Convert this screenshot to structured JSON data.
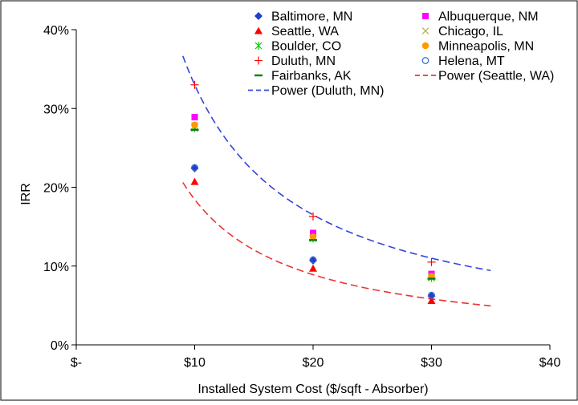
{
  "chart_data": {
    "type": "scatter",
    "title": "",
    "xlabel": "Installed System Cost ($/sqft - Absorber)",
    "ylabel": "IRR",
    "xlim": [
      0,
      40
    ],
    "ylim": [
      0,
      0.4
    ],
    "grid": false,
    "legend_position": "top-right",
    "x_ticks": [
      {
        "value": 0,
        "label": "$-"
      },
      {
        "value": 10,
        "label": "$10"
      },
      {
        "value": 20,
        "label": "$20"
      },
      {
        "value": 30,
        "label": "$30"
      },
      {
        "value": 40,
        "label": "$40"
      }
    ],
    "y_ticks": [
      {
        "value": 0,
        "label": "0%"
      },
      {
        "value": 0.1,
        "label": "10%"
      },
      {
        "value": 0.2,
        "label": "20%"
      },
      {
        "value": 0.3,
        "label": "30%"
      },
      {
        "value": 0.4,
        "label": "40%"
      }
    ],
    "series": [
      {
        "name": "Baltimore, MN",
        "marker": "diamond",
        "color": "#1f3fd0",
        "x": [
          10,
          20,
          30
        ],
        "y": [
          0.224,
          0.107,
          0.062
        ]
      },
      {
        "name": "Albuquerque, NM",
        "marker": "square",
        "color": "#ff00ff",
        "x": [
          10,
          20,
          30
        ],
        "y": [
          0.289,
          0.142,
          0.09
        ]
      },
      {
        "name": "Seattle, WA",
        "marker": "triangle",
        "color": "#ff0000",
        "x": [
          10,
          20,
          30
        ],
        "y": [
          0.207,
          0.097,
          0.056
        ]
      },
      {
        "name": "Chicago, IL",
        "marker": "x",
        "color": "#b0b040",
        "x": [
          10,
          20,
          30
        ],
        "y": [
          0.278,
          0.136,
          0.086
        ]
      },
      {
        "name": "Boulder, CO",
        "marker": "asterisk",
        "color": "#00cc00",
        "x": [
          10,
          20,
          30
        ],
        "y": [
          0.275,
          0.135,
          0.085
        ]
      },
      {
        "name": "Minneapolis, MN",
        "marker": "circle",
        "color": "#ff9900",
        "x": [
          10,
          20,
          30
        ],
        "y": [
          0.279,
          0.137,
          0.087
        ]
      },
      {
        "name": "Duluth, MN",
        "marker": "plus",
        "color": "#ff0000",
        "x": [
          10,
          20,
          30
        ],
        "y": [
          0.33,
          0.163,
          0.105
        ]
      },
      {
        "name": "Helena, MT",
        "marker": "open-circle",
        "color": "#3366cc",
        "x": [
          10,
          20,
          30
        ],
        "y": [
          0.225,
          0.108,
          0.063
        ]
      },
      {
        "name": "Fairbanks, AK",
        "marker": "dash",
        "color": "#008000",
        "x": [
          10,
          20,
          30
        ],
        "y": [
          0.273,
          0.133,
          0.084
        ]
      }
    ],
    "trendlines": [
      {
        "name": "Power (Duluth, MN)",
        "style": "dashed",
        "color": "#3344dd",
        "coef": 3.3,
        "exponent": -1.0,
        "x_range": [
          9,
          35
        ]
      },
      {
        "name": "Power (Seattle, WA)",
        "style": "dashed",
        "color": "#ee3333",
        "coef": 2.07,
        "exponent": -1.05,
        "x_range": [
          9,
          35
        ]
      }
    ],
    "legend_order": [
      "Baltimore, MN",
      "Albuquerque, NM",
      "Seattle, WA",
      "Chicago, IL",
      "Boulder, CO",
      "Minneapolis, MN",
      "Duluth, MN",
      "Helena, MT",
      "Fairbanks, AK",
      "Power (Seattle, WA)",
      "Power (Duluth, MN)"
    ]
  }
}
